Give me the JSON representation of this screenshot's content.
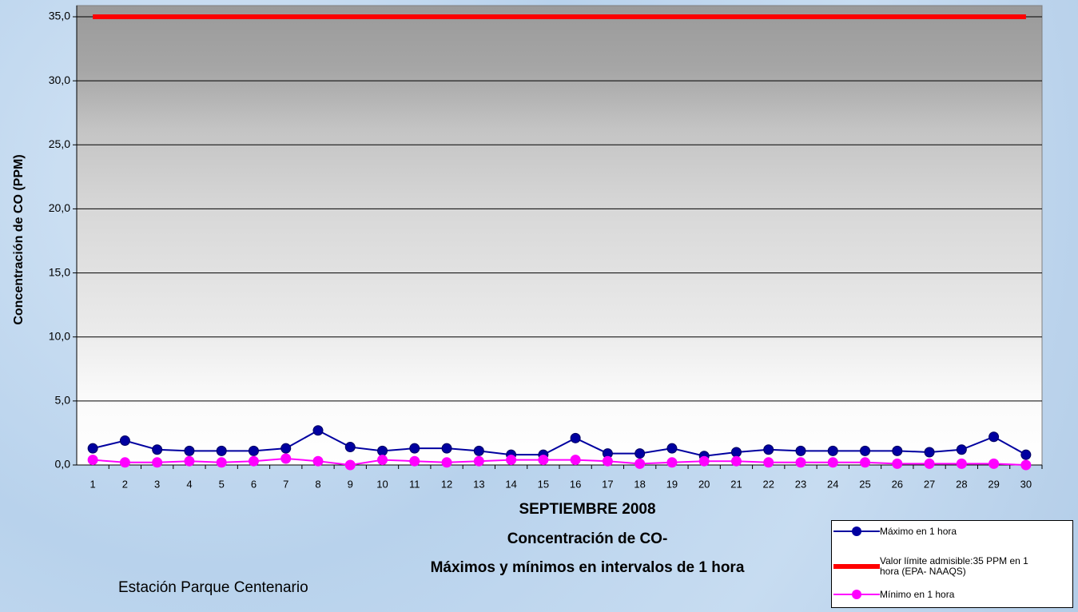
{
  "chart_data": {
    "type": "line",
    "title_lines": [
      "SEPTIEMBRE 2008",
      "Concentración de CO-",
      "Máximos y mínimos en intervalos de 1 hora"
    ],
    "y_label": "Concentración de CO (PPM)",
    "annotation": "Estación Parque Centenario",
    "categories": [
      "1",
      "2",
      "3",
      "4",
      "5",
      "6",
      "7",
      "8",
      "9",
      "10",
      "11",
      "12",
      "13",
      "14",
      "15",
      "16",
      "17",
      "18",
      "19",
      "20",
      "21",
      "22",
      "23",
      "24",
      "25",
      "26",
      "27",
      "28",
      "29",
      "30"
    ],
    "ylim": [
      0,
      35
    ],
    "yticks": [
      {
        "value": 0,
        "label": "0,0"
      },
      {
        "value": 5,
        "label": "5,0"
      },
      {
        "value": 10,
        "label": "10,0"
      },
      {
        "value": 15,
        "label": "15,0"
      },
      {
        "value": 20,
        "label": "20,0"
      },
      {
        "value": 25,
        "label": "25,0"
      },
      {
        "value": 30,
        "label": "30,0"
      },
      {
        "value": 35,
        "label": "35,0"
      }
    ],
    "grid": true,
    "legend": "bottom-right",
    "series": [
      {
        "name": "Máximo en 1 hora",
        "color": "#0000a0",
        "marker": true,
        "values": [
          1.3,
          1.9,
          1.2,
          1.1,
          1.1,
          1.1,
          1.3,
          2.7,
          1.4,
          1.1,
          1.3,
          1.3,
          1.1,
          0.8,
          0.8,
          2.1,
          0.9,
          0.9,
          1.3,
          0.7,
          1.0,
          1.2,
          1.1,
          1.1,
          1.1,
          1.1,
          1.0,
          1.2,
          2.2,
          0.8
        ]
      },
      {
        "name": "Valor límite admisible:35 PPM en 1 hora (EPA- NAAQS)",
        "color": "#ff0000",
        "marker": false,
        "values": [
          35,
          35,
          35,
          35,
          35,
          35,
          35,
          35,
          35,
          35,
          35,
          35,
          35,
          35,
          35,
          35,
          35,
          35,
          35,
          35,
          35,
          35,
          35,
          35,
          35,
          35,
          35,
          35,
          35,
          35
        ]
      },
      {
        "name": "Mínimo en 1 hora",
        "color": "#ff00ff",
        "marker": true,
        "values": [
          0.4,
          0.2,
          0.2,
          0.3,
          0.2,
          0.3,
          0.5,
          0.3,
          0.0,
          0.4,
          0.3,
          0.2,
          0.3,
          0.4,
          0.4,
          0.4,
          0.3,
          0.1,
          0.2,
          0.3,
          0.3,
          0.2,
          0.2,
          0.2,
          0.2,
          0.1,
          0.1,
          0.1,
          0.1,
          0.0
        ]
      }
    ]
  }
}
